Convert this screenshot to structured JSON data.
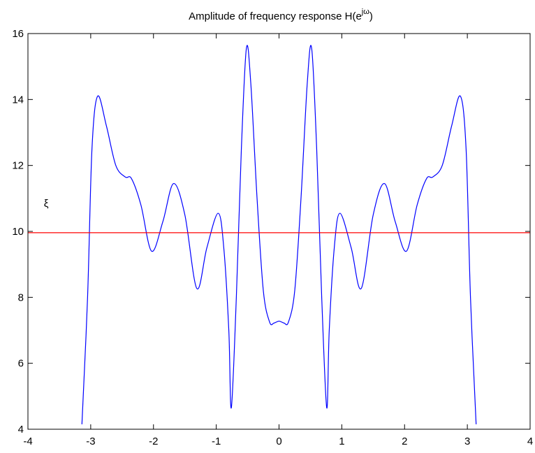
{
  "chart_data": {
    "type": "line",
    "title": {
      "text": "Amplitude of frequency response H(e",
      "superscript": "jω",
      "suffix": ")"
    },
    "annotation": {
      "text": "ξ",
      "x": -3.71,
      "y": 10.85
    },
    "hline": {
      "y": 9.96,
      "color": "#ff0000"
    },
    "x": [
      -3.14,
      -3.05,
      -2.98,
      -2.89,
      -2.75,
      -2.6,
      -2.45,
      -2.35,
      -2.2,
      -2.03,
      -1.85,
      -1.68,
      -1.5,
      -1.31,
      -1.15,
      -0.97,
      -0.88,
      -0.8,
      -0.76,
      -0.68,
      -0.6,
      -0.52,
      -0.45,
      -0.35,
      -0.25,
      -0.15,
      -0.08,
      0,
      0.08,
      0.15,
      0.25,
      0.35,
      0.45,
      0.52,
      0.6,
      0.68,
      0.76,
      0.8,
      0.88,
      0.97,
      1.15,
      1.31,
      1.5,
      1.68,
      1.85,
      2.03,
      2.2,
      2.35,
      2.45,
      2.6,
      2.75,
      2.89,
      2.98,
      3.05,
      3.14
    ],
    "series": [
      {
        "color": "#0000ff",
        "values": [
          4.15,
          8,
          12.5,
          14.1,
          13.2,
          12,
          11.65,
          11.6,
          10.8,
          9.4,
          10.3,
          11.45,
          10.5,
          8.27,
          9.5,
          10.55,
          9.5,
          7,
          4.65,
          8,
          12.5,
          15.55,
          14.5,
          11,
          8.2,
          7.25,
          7.22,
          7.28,
          7.22,
          7.25,
          8.2,
          11,
          14.5,
          15.55,
          12.5,
          8,
          4.65,
          7,
          9.5,
          10.55,
          9.5,
          8.27,
          10.5,
          11.45,
          10.3,
          9.4,
          10.8,
          11.6,
          11.65,
          12,
          13.2,
          14.1,
          12.5,
          8,
          4.15
        ]
      }
    ],
    "xlim": [
      -4,
      4
    ],
    "xticks": [
      -4,
      -3,
      -2,
      -1,
      0,
      1,
      2,
      3,
      4
    ],
    "ylim": [
      4,
      16
    ],
    "yticks": [
      4,
      6,
      8,
      10,
      12,
      14,
      16
    ]
  }
}
